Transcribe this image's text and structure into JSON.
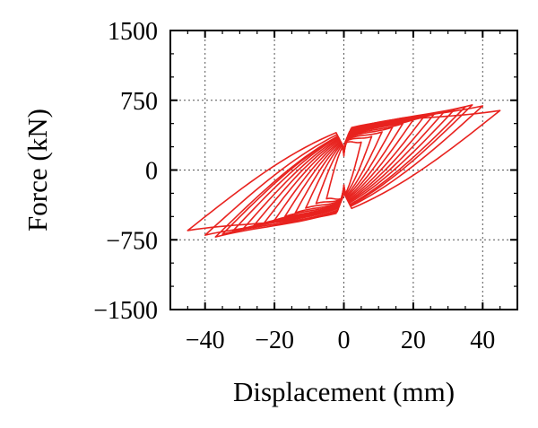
{
  "chart_data": {
    "type": "line",
    "xlabel": "Displacement (mm)",
    "ylabel": "Force (kN)",
    "xlim": [
      -50,
      50
    ],
    "ylim": [
      -1500,
      1500
    ],
    "x_ticks": [
      -40,
      -20,
      0,
      20,
      40
    ],
    "x_tick_labels": [
      "−40",
      "−20",
      "0",
      "20",
      "40"
    ],
    "y_ticks": [
      1500,
      750,
      0,
      -750,
      -1500
    ],
    "y_tick_labels": [
      "1500",
      "750",
      "0",
      "−750",
      "−1500"
    ],
    "grid": true,
    "legend": "none",
    "line_color": "#e8231f",
    "series": [
      {
        "values_description": "hysteresis loop",
        "loops": [
          {
            "x_peak": 5,
            "y_peak": 300,
            "x_neg": -5,
            "y_neg": -310
          },
          {
            "x_peak": 8,
            "y_peak": 360,
            "x_neg": -8,
            "y_neg": -360
          },
          {
            "x_peak": 11,
            "y_peak": 410,
            "x_neg": -11,
            "y_neg": -410
          },
          {
            "x_peak": 14,
            "y_peak": 460,
            "x_neg": -14,
            "y_neg": -460
          },
          {
            "x_peak": 17,
            "y_peak": 500,
            "x_neg": -17,
            "y_neg": -500
          },
          {
            "x_peak": 20,
            "y_peak": 540,
            "x_neg": -20,
            "y_neg": -540
          },
          {
            "x_peak": 23,
            "y_peak": 570,
            "x_neg": -23,
            "y_neg": -570
          },
          {
            "x_peak": 26,
            "y_peak": 600,
            "x_neg": -26,
            "y_neg": -600
          },
          {
            "x_peak": 29,
            "y_peak": 630,
            "x_neg": -29,
            "y_neg": -630
          },
          {
            "x_peak": 32,
            "y_peak": 655,
            "x_neg": -32,
            "y_neg": -655
          },
          {
            "x_peak": 35,
            "y_peak": 680,
            "x_neg": -35,
            "y_neg": -690
          },
          {
            "x_peak": 37,
            "y_peak": 700,
            "x_neg": -37,
            "y_neg": -720
          },
          {
            "x_peak": 40,
            "y_peak": 690,
            "x_neg": -40,
            "y_neg": -700
          },
          {
            "x_peak": 45,
            "y_peak": 640,
            "x_neg": -45,
            "y_neg": -650
          }
        ]
      }
    ]
  }
}
